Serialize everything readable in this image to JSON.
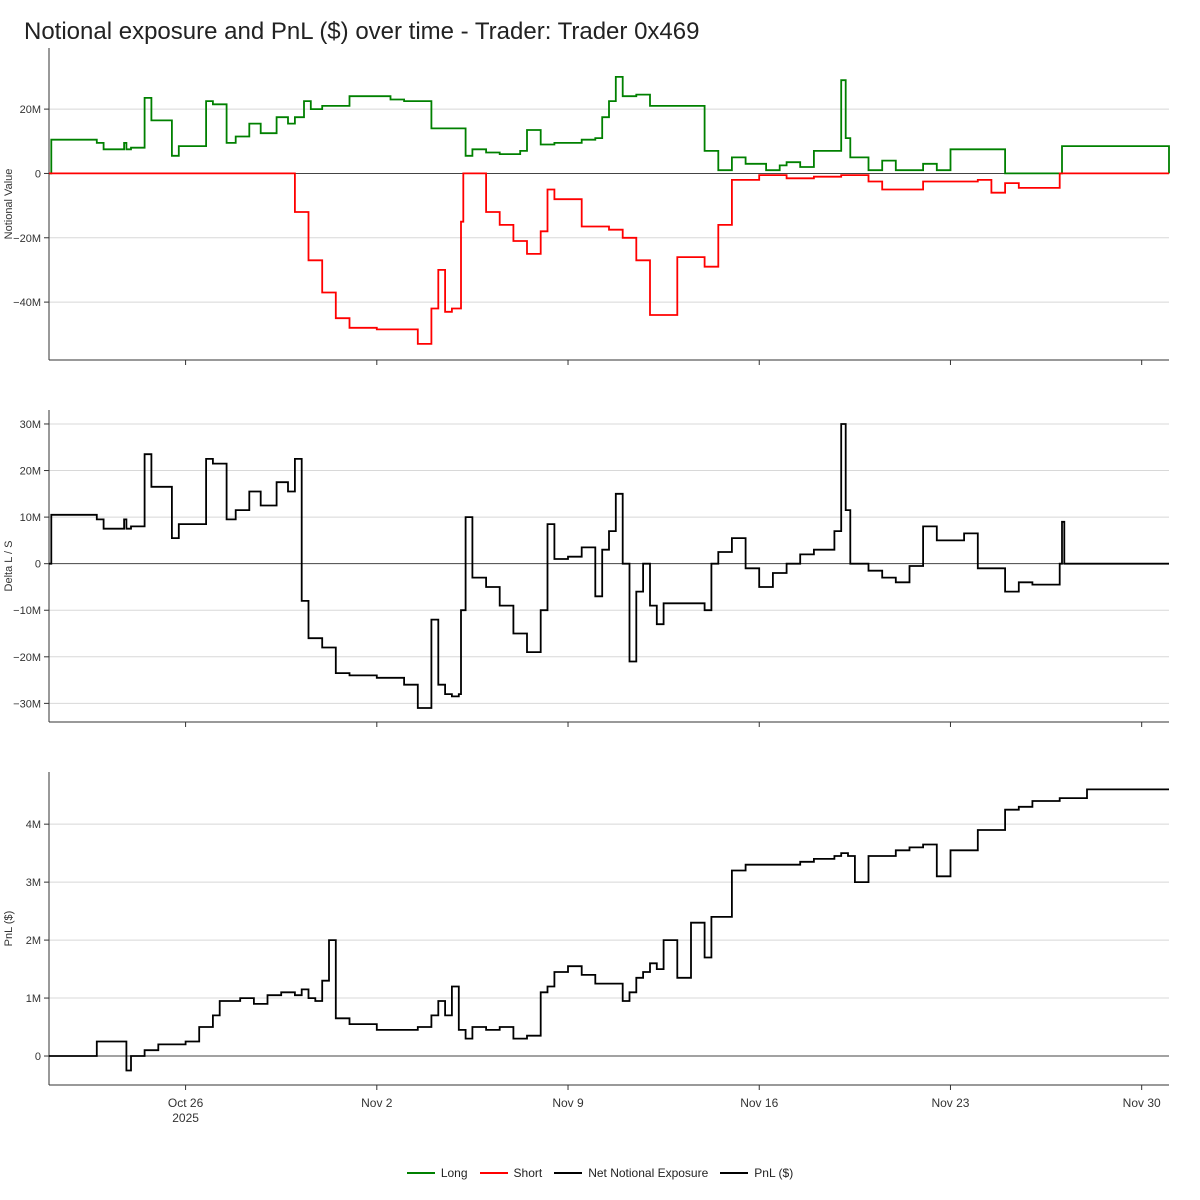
{
  "title": "Notional exposure and PnL ($) over time - Trader: Trader 0x469",
  "legend": [
    {
      "label": "Long",
      "color": "#008000"
    },
    {
      "label": "Short",
      "color": "#ff0000"
    },
    {
      "label": "Net Notional Exposure",
      "color": "#000000"
    },
    {
      "label": "PnL ($)",
      "color": "#000000"
    }
  ],
  "chart_data": [
    {
      "type": "line",
      "ylabel": "Notional Value",
      "ylim": [
        -58000000,
        39000000
      ],
      "yticks": [
        20000000,
        0,
        -20000000,
        -40000000
      ],
      "ytick_labels": [
        "20M",
        "0",
        "−20M",
        "−40M"
      ],
      "zero_line": true,
      "grid": true,
      "series": [
        {
          "name": "Long",
          "color": "#008000",
          "x": [
            "2025-10-21",
            "2025-10-21T02",
            "2025-10-22T06",
            "2025-10-22T18",
            "2025-10-23",
            "2025-10-23T18",
            "2025-10-23T20",
            "2025-10-24",
            "2025-10-24T12",
            "2025-10-24T18",
            "2025-10-25T12",
            "2025-10-25T18",
            "2025-10-26T12",
            "2025-10-26T18",
            "2025-10-27",
            "2025-10-27T12",
            "2025-10-27T20",
            "2025-10-28T08",
            "2025-10-28T18",
            "2025-10-29T08",
            "2025-10-29T18",
            "2025-10-30",
            "2025-10-30T08",
            "2025-10-30T14",
            "2025-10-31",
            "2025-11-01",
            "2025-11-01T12",
            "2025-11-02",
            "2025-11-02T12",
            "2025-11-03",
            "2025-11-04",
            "2025-11-05",
            "2025-11-05T06",
            "2025-11-05T12",
            "2025-11-06",
            "2025-11-06T12",
            "2025-11-07T06",
            "2025-11-07T12",
            "2025-11-08",
            "2025-11-08T12",
            "2025-11-09T06",
            "2025-11-09T12",
            "2025-11-10",
            "2025-11-10T06",
            "2025-11-10T12",
            "2025-11-10T18",
            "2025-11-11",
            "2025-11-11T12",
            "2025-11-12",
            "2025-11-13",
            "2025-11-14",
            "2025-11-14T12",
            "2025-11-15",
            "2025-11-15T12",
            "2025-11-16T06",
            "2025-11-16T18",
            "2025-11-17",
            "2025-11-17T12",
            "2025-11-18",
            "2025-11-18T18",
            "2025-11-19",
            "2025-11-19T04",
            "2025-11-19T08",
            "2025-11-20",
            "2025-11-20T12",
            "2025-11-21",
            "2025-11-21T12",
            "2025-11-22",
            "2025-11-22T12",
            "2025-11-23",
            "2025-11-23T12",
            "2025-11-24",
            "2025-11-25",
            "2025-11-26",
            "2025-11-26T12",
            "2025-11-27",
            "2025-11-27T02",
            "2025-12-01"
          ],
          "values": [
            0,
            10500000,
            10500000,
            9500000,
            7500000,
            9500000,
            7500000,
            8000000,
            23500000,
            16500000,
            5500000,
            8500000,
            8500000,
            22500000,
            21500000,
            9500000,
            11500000,
            15500000,
            12500000,
            17500000,
            15500000,
            17500000,
            22500000,
            20000000,
            21000000,
            24000000,
            24000000,
            24000000,
            23000000,
            22500000,
            14000000,
            14000000,
            5500000,
            7500000,
            6500000,
            6000000,
            7000000,
            13500000,
            9000000,
            9500000,
            9500000,
            10500000,
            11000000,
            17500000,
            22500000,
            30000000,
            24000000,
            24500000,
            21000000,
            21000000,
            7000000,
            1000000,
            5000000,
            3000000,
            1000000,
            2500000,
            3500000,
            2000000,
            7000000,
            7000000,
            29000000,
            11000000,
            5000000,
            1000000,
            4000000,
            1000000,
            1000000,
            3000000,
            1000000,
            7500000,
            7500000,
            7500000,
            0,
            0,
            0,
            0,
            8500000,
            0
          ]
        },
        {
          "name": "Short",
          "color": "#ff0000",
          "x": [
            "2025-10-21",
            "2025-10-29T20",
            "2025-10-30",
            "2025-10-30T12",
            "2025-10-31",
            "2025-10-31T12",
            "2025-11-01",
            "2025-11-02",
            "2025-11-03",
            "2025-11-03T12",
            "2025-11-04",
            "2025-11-04T06",
            "2025-11-04T12",
            "2025-11-04T18",
            "2025-11-05",
            "2025-11-05T02",
            "2025-11-05T04",
            "2025-11-06",
            "2025-11-06T12",
            "2025-11-07",
            "2025-11-07T12",
            "2025-11-08",
            "2025-11-08T06",
            "2025-11-08T12",
            "2025-11-09",
            "2025-11-09T12",
            "2025-11-10",
            "2025-11-10T12",
            "2025-11-11",
            "2025-11-11T12",
            "2025-11-12",
            "2025-11-13",
            "2025-11-14",
            "2025-11-14T06",
            "2025-11-14T12",
            "2025-11-15",
            "2025-11-16",
            "2025-11-17",
            "2025-11-18",
            "2025-11-18T12",
            "2025-11-19",
            "2025-11-20",
            "2025-11-20T12",
            "2025-11-21",
            "2025-11-22",
            "2025-11-23",
            "2025-11-24",
            "2025-11-24T12",
            "2025-11-25",
            "2025-11-25T12",
            "2025-11-26",
            "2025-11-27",
            "2025-12-01"
          ],
          "values": [
            0,
            0,
            -12000000,
            -27000000,
            -37000000,
            -45000000,
            -48000000,
            -48500000,
            -48500000,
            -53000000,
            -42000000,
            -30000000,
            -43000000,
            -42000000,
            -42000000,
            -15000000,
            0,
            -12000000,
            -16000000,
            -21000000,
            -25000000,
            -18000000,
            -5000000,
            -8000000,
            -8000000,
            -16500000,
            -16500000,
            -17500000,
            -20000000,
            -27000000,
            -44000000,
            -26000000,
            -29000000,
            -29000000,
            -16000000,
            -2000000,
            -500000,
            -1500000,
            -1000000,
            -1000000,
            -500000,
            -2500000,
            -5000000,
            -5000000,
            -2500000,
            -2500000,
            -2000000,
            -6000000,
            -3000000,
            -4500000,
            -4500000,
            0,
            0
          ]
        }
      ]
    },
    {
      "type": "line",
      "ylabel": "Delta L / S",
      "ylim": [
        -34000000,
        33000000
      ],
      "yticks": [
        30000000,
        20000000,
        10000000,
        0,
        -10000000,
        -20000000,
        -30000000
      ],
      "ytick_labels": [
        "30M",
        "20M",
        "10M",
        "0",
        "−10M",
        "−20M",
        "−30M"
      ],
      "zero_line": true,
      "grid": true,
      "series": [
        {
          "name": "Net Notional Exposure",
          "color": "#000000",
          "x": [
            "2025-10-21",
            "2025-10-21T02",
            "2025-10-22T06",
            "2025-10-22T18",
            "2025-10-23",
            "2025-10-23T18",
            "2025-10-23T20",
            "2025-10-24",
            "2025-10-24T12",
            "2025-10-24T18",
            "2025-10-25T12",
            "2025-10-25T18",
            "2025-10-26T12",
            "2025-10-26T18",
            "2025-10-27",
            "2025-10-27T12",
            "2025-10-27T20",
            "2025-10-28T08",
            "2025-10-28T18",
            "2025-10-29T08",
            "2025-10-29T18",
            "2025-10-30",
            "2025-10-30T06",
            "2025-10-30T12",
            "2025-10-31",
            "2025-10-31T12",
            "2025-11-01",
            "2025-11-02",
            "2025-11-03",
            "2025-11-03T12",
            "2025-11-04",
            "2025-11-04T06",
            "2025-11-04T12",
            "2025-11-04T18",
            "2025-11-05",
            "2025-11-05T02",
            "2025-11-05T06",
            "2025-11-05T12",
            "2025-11-06",
            "2025-11-06T12",
            "2025-11-07",
            "2025-11-07T12",
            "2025-11-08",
            "2025-11-08T06",
            "2025-11-08T12",
            "2025-11-09",
            "2025-11-09T12",
            "2025-11-10",
            "2025-11-10T06",
            "2025-11-10T12",
            "2025-11-10T18",
            "2025-11-11",
            "2025-11-11T06",
            "2025-11-11T12",
            "2025-11-11T18",
            "2025-11-12",
            "2025-11-12T06",
            "2025-11-12T12",
            "2025-11-13",
            "2025-11-14",
            "2025-11-14T06",
            "2025-11-14T12",
            "2025-11-15",
            "2025-11-15T12",
            "2025-11-16",
            "2025-11-16T12",
            "2025-11-17",
            "2025-11-17T12",
            "2025-11-18",
            "2025-11-18T18",
            "2025-11-19",
            "2025-11-19T04",
            "2025-11-19T08",
            "2025-11-20",
            "2025-11-20T12",
            "2025-11-21",
            "2025-11-21T12",
            "2025-11-22",
            "2025-11-22T12",
            "2025-11-23",
            "2025-11-23T12",
            "2025-11-24",
            "2025-11-24T12",
            "2025-11-25",
            "2025-11-25T12",
            "2025-11-26",
            "2025-11-27",
            "2025-11-27T02",
            "2025-11-27T04",
            "2025-12-01"
          ],
          "values": [
            0,
            10500000,
            10500000,
            9500000,
            7500000,
            9500000,
            7500000,
            8000000,
            23500000,
            16500000,
            5500000,
            8500000,
            8500000,
            22500000,
            21500000,
            9500000,
            11500000,
            15500000,
            12500000,
            17500000,
            15500000,
            22500000,
            -8000000,
            -16000000,
            -18000000,
            -23500000,
            -24000000,
            -24500000,
            -26000000,
            -31000000,
            -12000000,
            -26000000,
            -28000000,
            -28500000,
            -28000000,
            -10000000,
            10000000,
            -3000000,
            -5000000,
            -9000000,
            -15000000,
            -19000000,
            -10000000,
            8500000,
            1000000,
            1500000,
            3500000,
            -7000000,
            3000000,
            7000000,
            15000000,
            0,
            -21000000,
            -6000000,
            0,
            -9000000,
            -13000000,
            -8500000,
            -8500000,
            -10000000,
            0,
            2500000,
            5500000,
            -1000000,
            -5000000,
            -2000000,
            0,
            2000000,
            3000000,
            7000000,
            30000000,
            11500000,
            0,
            -1500000,
            -3000000,
            -4000000,
            -500000,
            8000000,
            5000000,
            5000000,
            6500000,
            -1000000,
            -1000000,
            -6000000,
            -4000000,
            -4500000,
            0,
            9000000,
            0,
            0
          ]
        }
      ]
    },
    {
      "type": "line",
      "ylabel": "PnL ($)",
      "ylim": [
        -500000,
        4900000
      ],
      "yticks": [
        4000000,
        3000000,
        2000000,
        1000000,
        0
      ],
      "ytick_labels": [
        "4M",
        "3M",
        "2M",
        "1M",
        "0"
      ],
      "xticks": [
        "2025-10-26",
        "2025-11-02",
        "2025-11-09",
        "2025-11-16",
        "2025-11-23",
        "2025-11-30"
      ],
      "xtick_labels": [
        "Oct 26",
        "Nov 2",
        "Nov 9",
        "Nov 16",
        "Nov 23",
        "Nov 30"
      ],
      "xtick_sublabel": "2025",
      "zero_line": true,
      "grid": true,
      "series": [
        {
          "name": "PnL ($)",
          "color": "#000000",
          "x": [
            "2025-10-21",
            "2025-10-22",
            "2025-10-22T18",
            "2025-10-23T20",
            "2025-10-24",
            "2025-10-24T12",
            "2025-10-25",
            "2025-10-25T12",
            "2025-10-26",
            "2025-10-26T12",
            "2025-10-27",
            "2025-10-27T06",
            "2025-10-27T18",
            "2025-10-28",
            "2025-10-28T12",
            "2025-10-29",
            "2025-10-29T12",
            "2025-10-30",
            "2025-10-30T06",
            "2025-10-30T12",
            "2025-10-30T18",
            "2025-10-31",
            "2025-10-31T06",
            "2025-10-31T12",
            "2025-11-01",
            "2025-11-02",
            "2025-11-03",
            "2025-11-03T12",
            "2025-11-04",
            "2025-11-04T06",
            "2025-11-04T12",
            "2025-11-04T18",
            "2025-11-05",
            "2025-11-05T06",
            "2025-11-05T12",
            "2025-11-06",
            "2025-11-06T12",
            "2025-11-07",
            "2025-11-07T12",
            "2025-11-08",
            "2025-11-08T06",
            "2025-11-08T12",
            "2025-11-09",
            "2025-11-09T12",
            "2025-11-10",
            "2025-11-10T12",
            "2025-11-11",
            "2025-11-11T06",
            "2025-11-11T12",
            "2025-11-11T18",
            "2025-11-12",
            "2025-11-12T06",
            "2025-11-12T12",
            "2025-11-13",
            "2025-11-13T12",
            "2025-11-14",
            "2025-11-14T06",
            "2025-11-14T12",
            "2025-11-15",
            "2025-11-15T12",
            "2025-11-16",
            "2025-11-17",
            "2025-11-17T12",
            "2025-11-18",
            "2025-11-18T18",
            "2025-11-19",
            "2025-11-19T06",
            "2025-11-19T12",
            "2025-11-20",
            "2025-11-20T12",
            "2025-11-21",
            "2025-11-21T12",
            "2025-11-22",
            "2025-11-22T12",
            "2025-11-23",
            "2025-11-23T06",
            "2025-11-23T12",
            "2025-11-24",
            "2025-11-25",
            "2025-11-25T12",
            "2025-11-26",
            "2025-11-27",
            "2025-11-27T02",
            "2025-11-28",
            "2025-12-01"
          ],
          "values": [
            0,
            0,
            250000,
            -250000,
            0,
            100000,
            200000,
            200000,
            250000,
            500000,
            700000,
            950000,
            950000,
            1000000,
            900000,
            1050000,
            1100000,
            1050000,
            1150000,
            1000000,
            950000,
            1300000,
            2000000,
            650000,
            550000,
            450000,
            450000,
            500000,
            700000,
            950000,
            700000,
            1200000,
            450000,
            300000,
            500000,
            450000,
            500000,
            300000,
            350000,
            1100000,
            1200000,
            1450000,
            1550000,
            1400000,
            1250000,
            1250000,
            950000,
            1100000,
            1350000,
            1450000,
            1600000,
            1500000,
            2000000,
            1350000,
            2300000,
            1700000,
            2400000,
            2400000,
            3200000,
            3300000,
            3300000,
            3300000,
            3350000,
            3400000,
            3450000,
            3500000,
            3450000,
            3000000,
            3450000,
            3450000,
            3550000,
            3600000,
            3650000,
            3100000,
            3550000,
            3550000,
            3550000,
            3900000,
            4250000,
            4300000,
            4400000,
            4450000,
            4450000,
            4600000,
            4600000
          ]
        }
      ]
    }
  ]
}
